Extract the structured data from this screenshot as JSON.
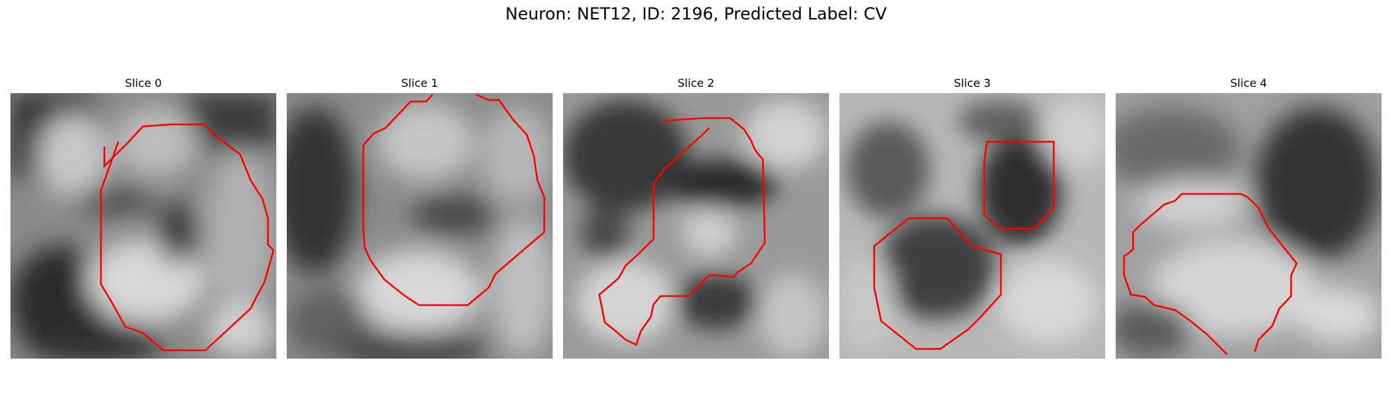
{
  "figure": {
    "title": "Neuron: NET12, ID: 2196, Predicted Label: CV"
  },
  "colors": {
    "contour": "#ff0000",
    "background": "#ffffff"
  },
  "panels": [
    {
      "title": "Slice 0"
    },
    {
      "title": "Slice 1"
    },
    {
      "title": "Slice 2"
    },
    {
      "title": "Slice 3"
    },
    {
      "title": "Slice 4"
    }
  ]
}
